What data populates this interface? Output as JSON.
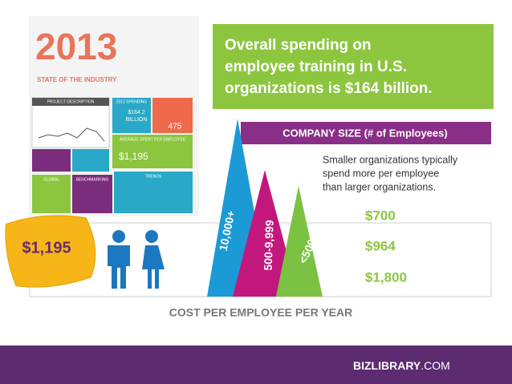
{
  "headline": [
    "Overall spending on",
    "employee training in U.S.",
    "organizations is $164 billion."
  ],
  "report_cover": {
    "year": "2013",
    "subtitle": "STATE OF THE INDUSTRY",
    "panels": [
      "PROJECT DESCRIPTION",
      "2012 SPENDING",
      "AVERAGE SPENT PER EMPLOYEE",
      "GLOBAL",
      "BENCHMARKING",
      "TRENDS"
    ],
    "spending": "$164.2",
    "spending_unit": "BILLION",
    "count": "475",
    "average": "$1,195"
  },
  "company_size_heading": "COMPANY SIZE (# of Employees)",
  "note": [
    "Smaller organizations typically",
    "spend more per employee",
    "than larger organizations."
  ],
  "sizes": [
    {
      "label": "10,000+",
      "cost": "$700"
    },
    {
      "label": "500-9,999",
      "cost": "$964"
    },
    {
      "label": "<500",
      "cost": "$1,800"
    }
  ],
  "average_tag": "$1,195",
  "axis_caption": "COST PER EMPLOYEE PER YEAR",
  "footer": {
    "brand_bold": "BIZLIBRARY",
    "brand_rest": ".COM"
  }
}
